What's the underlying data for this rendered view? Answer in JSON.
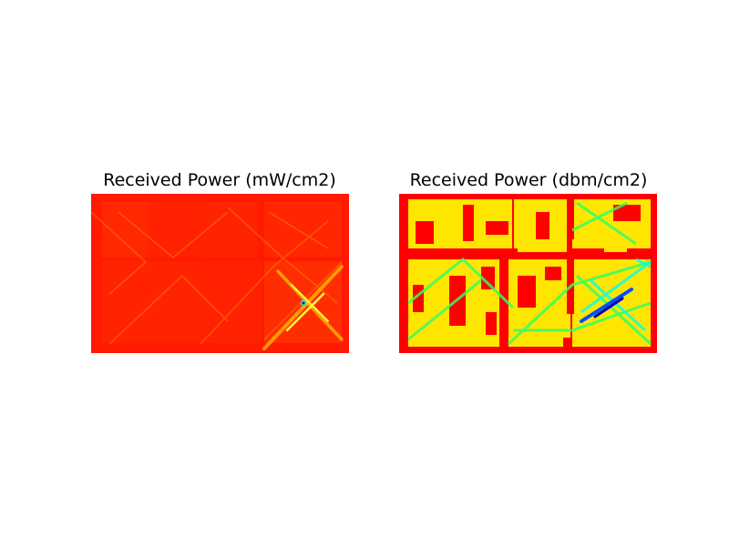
{
  "chart_data": [
    {
      "type": "heatmap",
      "title": "Received Power (mW/cm2)",
      "colormap": "jet",
      "colors": {
        "background": "#ff0000",
        "accent": "#ffd400",
        "hotspot": "#0000ff"
      }
    },
    {
      "type": "heatmap",
      "title": "Received Power (dbm/cm2)",
      "colormap": "jet",
      "colors": {
        "background": "#ff0000",
        "band_mid": "#ffe600",
        "band_low": "#00ff66",
        "band_min": "#0000cc"
      }
    }
  ]
}
